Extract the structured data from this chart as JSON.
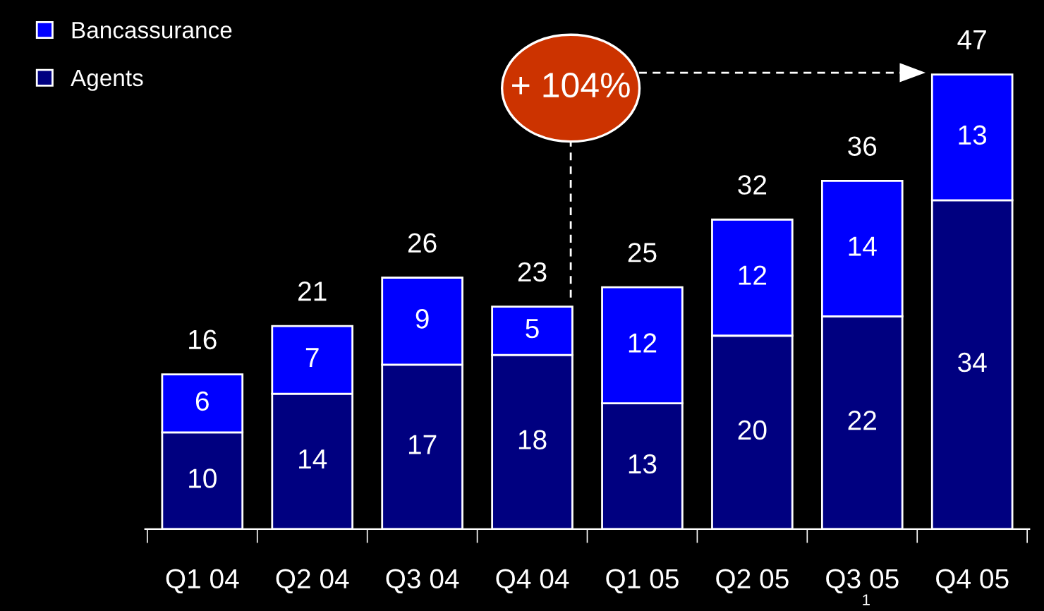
{
  "chart_data": {
    "type": "bar",
    "stacked": true,
    "data_labels": true,
    "legend": "top left",
    "grid": false,
    "categories": [
      "Q1 04",
      "Q2 04",
      "Q3 04",
      "Q4 04",
      "Q1 05",
      "Q2 05",
      "Q3 05",
      "Q4 05"
    ],
    "series": [
      {
        "name": "Agents",
        "color": "#000080",
        "values": [
          10,
          14,
          17,
          18,
          13,
          20,
          22,
          34
        ]
      },
      {
        "name": "Bancassurance",
        "color": "#0000ff",
        "values": [
          6,
          7,
          9,
          5,
          12,
          12,
          14,
          13
        ]
      }
    ],
    "totals": [
      "16",
      "21",
      "26",
      "23",
      "25",
      "32",
      "36",
      "47"
    ],
    "annotations": [
      "+ 104%",
      "1"
    ]
  }
}
